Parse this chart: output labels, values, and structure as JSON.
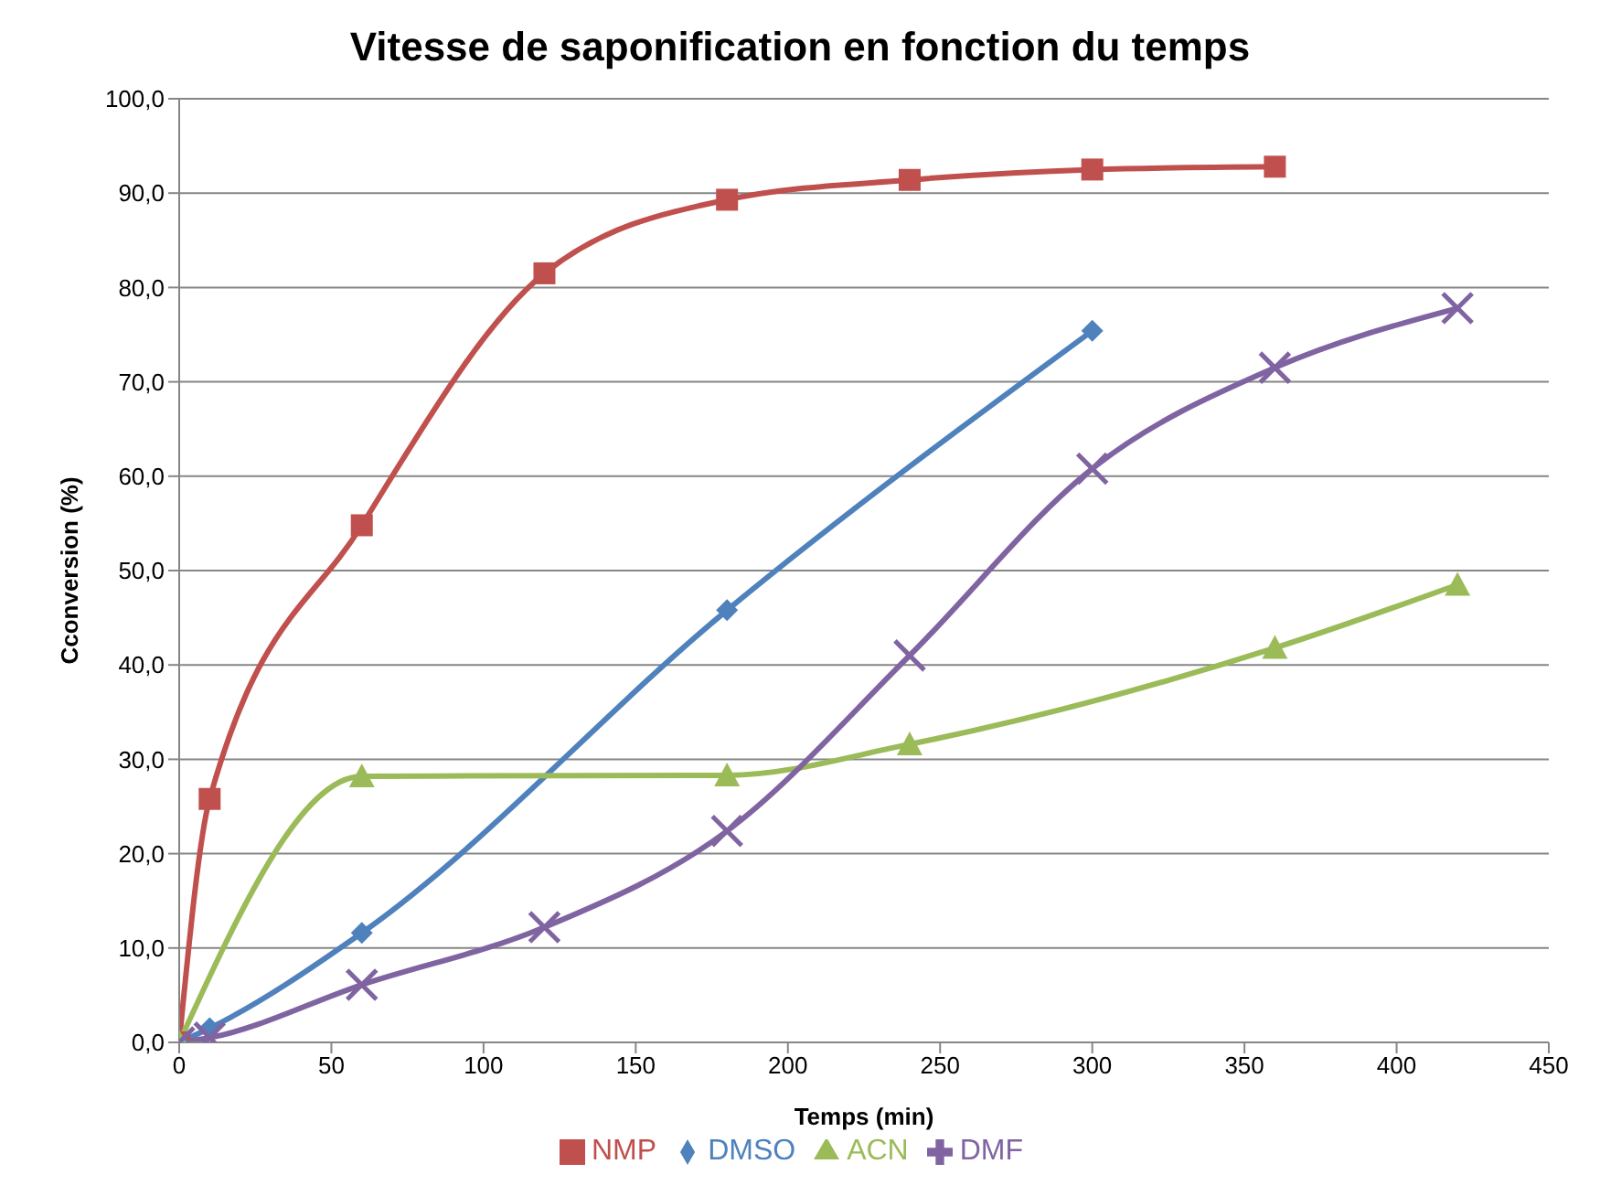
{
  "chart_data": {
    "type": "line",
    "title": "Vitesse de saponification en  fonction du temps",
    "xlabel": "Temps (min)",
    "ylabel": "Cconversion (%)",
    "xlim": [
      0,
      450
    ],
    "xticks": [
      0,
      50,
      100,
      150,
      200,
      250,
      300,
      350,
      400,
      450
    ],
    "ylim": [
      0,
      100
    ],
    "yticks": [
      {
        "value": 0,
        "label": "0,0"
      },
      {
        "value": 10,
        "label": "10,0"
      },
      {
        "value": 20,
        "label": "20,0"
      },
      {
        "value": 30,
        "label": "30,0"
      },
      {
        "value": 40,
        "label": "40,0"
      },
      {
        "value": 50,
        "label": "50,0"
      },
      {
        "value": 60,
        "label": "60,0"
      },
      {
        "value": 70,
        "label": "70,0"
      },
      {
        "value": 80,
        "label": "80,0"
      },
      {
        "value": 90,
        "label": "90,0"
      },
      {
        "value": 100,
        "label": "100,0"
      }
    ],
    "grid": "y",
    "legend": "bottom",
    "line_style": "solid",
    "series": [
      {
        "name": "NMP",
        "color": "#c0504d",
        "marker": "square",
        "x": [
          0,
          10,
          60,
          120,
          180,
          240,
          300,
          360
        ],
        "values": [
          0,
          25.8,
          54.8,
          81.5,
          89.3,
          91.4,
          92.5,
          92.8
        ]
      },
      {
        "name": "DMSO",
        "color": "#4f81bd",
        "marker": "diamond",
        "x": [
          0,
          10,
          60,
          180,
          300
        ],
        "values": [
          0,
          1.5,
          11.6,
          45.8,
          75.4
        ]
      },
      {
        "name": "ACN",
        "color": "#9bbb59",
        "marker": "triangle",
        "x": [
          0,
          60,
          180,
          240,
          360,
          420
        ],
        "values": [
          0,
          28.2,
          28.3,
          31.6,
          41.8,
          48.5
        ]
      },
      {
        "name": "DMF",
        "color": "#8064a2",
        "marker": "cross",
        "x": [
          0,
          10,
          60,
          120,
          180,
          240,
          300,
          360,
          420
        ],
        "values": [
          0,
          0.5,
          6.1,
          12.2,
          22.4,
          41.0,
          60.8,
          71.5,
          77.8
        ]
      }
    ]
  }
}
